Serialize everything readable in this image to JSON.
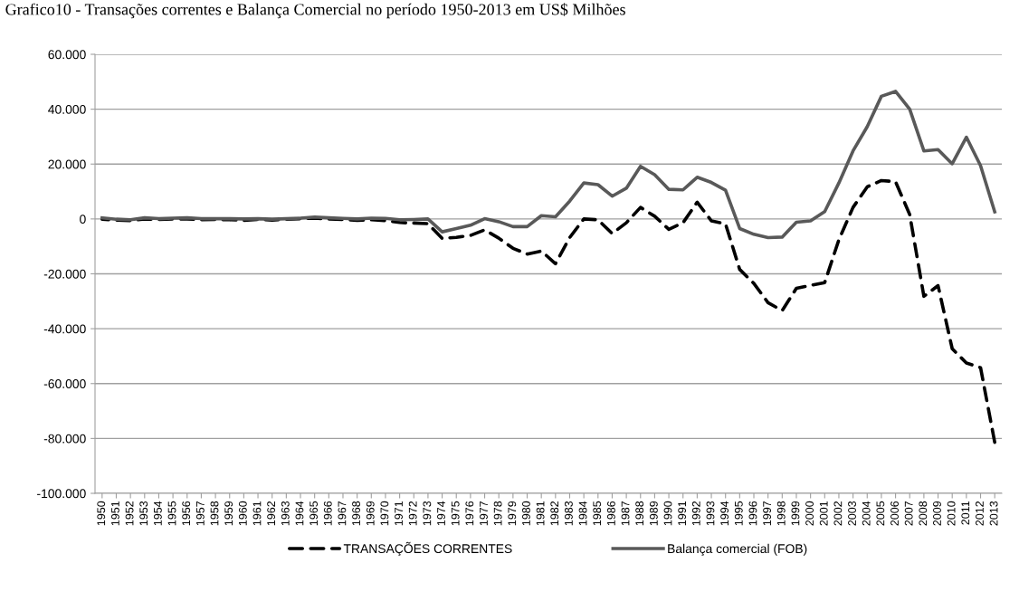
{
  "chart_data": {
    "type": "line",
    "title": "Grafico10 - Transações correntes e Balança Comercial no período 1950-2013 em US$ Milhões",
    "categories": [
      "1950",
      "1951",
      "1952",
      "1953",
      "1954",
      "1955",
      "1956",
      "1957",
      "1958",
      "1959",
      "1960",
      "1961",
      "1962",
      "1963",
      "1964",
      "1965",
      "1966",
      "1967",
      "1968",
      "1969",
      "1970",
      "1971",
      "1972",
      "1973",
      "1974",
      "1975",
      "1976",
      "1977",
      "1978",
      "1979",
      "1980",
      "1981",
      "1982",
      "1983",
      "1984",
      "1985",
      "1986",
      "1987",
      "1988",
      "1989",
      "1990",
      "1991",
      "1992",
      "1993",
      "1994",
      "1995",
      "1996",
      "1997",
      "1998",
      "1999",
      "2000",
      "2001",
      "2002",
      "2003",
      "2004",
      "2005",
      "2006",
      "2007",
      "2008",
      "2009",
      "2010",
      "2011",
      "2012",
      "2013"
    ],
    "series": [
      {
        "name": "TRANSAÇÕES CORRENTES",
        "color": "#000000",
        "line_style": "dashed",
        "values": [
          -100,
          -400,
          -600,
          0,
          -200,
          0,
          0,
          -300,
          -200,
          -300,
          -500,
          -200,
          -400,
          -100,
          100,
          300,
          0,
          -200,
          -500,
          -300,
          -600,
          -1300,
          -1500,
          -1700,
          -7100,
          -6700,
          -6000,
          -4000,
          -7000,
          -10700,
          -12800,
          -11700,
          -16300,
          -6800,
          0,
          -300,
          -5300,
          -1400,
          4200,
          1000,
          -3800,
          -1400,
          6100,
          -700,
          -1800,
          -18400,
          -23500,
          -30500,
          -33400,
          -25300,
          -24200,
          -23200,
          -7600,
          4200,
          11700,
          14000,
          13600,
          1600,
          -28200,
          -24300,
          -47300,
          -52500,
          -54200,
          -81400
        ]
      },
      {
        "name": "Balança comercial (FOB)",
        "color": "#595959",
        "line_style": "solid",
        "values": [
          400,
          -100,
          -300,
          400,
          100,
          300,
          400,
          100,
          100,
          100,
          0,
          100,
          -100,
          100,
          300,
          700,
          400,
          200,
          0,
          300,
          200,
          -300,
          -200,
          0,
          -4700,
          -3500,
          -2300,
          100,
          -1000,
          -2800,
          -2800,
          1200,
          800,
          6500,
          13100,
          12500,
          8300,
          11200,
          19200,
          16100,
          10800,
          10600,
          15200,
          13300,
          10500,
          -3500,
          -5600,
          -6800,
          -6600,
          -1200,
          -700,
          2700,
          13100,
          24800,
          33600,
          44700,
          46500,
          40000,
          24800,
          25300,
          20100,
          29800,
          19400,
          2600
        ]
      }
    ],
    "ylim": [
      -100000,
      60000
    ],
    "yticks": [
      {
        "value": -100000,
        "label": "-100.000"
      },
      {
        "value": -80000,
        "label": "-80.000"
      },
      {
        "value": -60000,
        "label": "-60.000"
      },
      {
        "value": -40000,
        "label": "-40.000"
      },
      {
        "value": -20000,
        "label": "-20.000"
      },
      {
        "value": 0,
        "label": "0"
      },
      {
        "value": 20000,
        "label": "20.000"
      },
      {
        "value": 40000,
        "label": "40.000"
      },
      {
        "value": 60000,
        "label": "60.000"
      }
    ],
    "grid": "y",
    "legend": "bottom"
  }
}
